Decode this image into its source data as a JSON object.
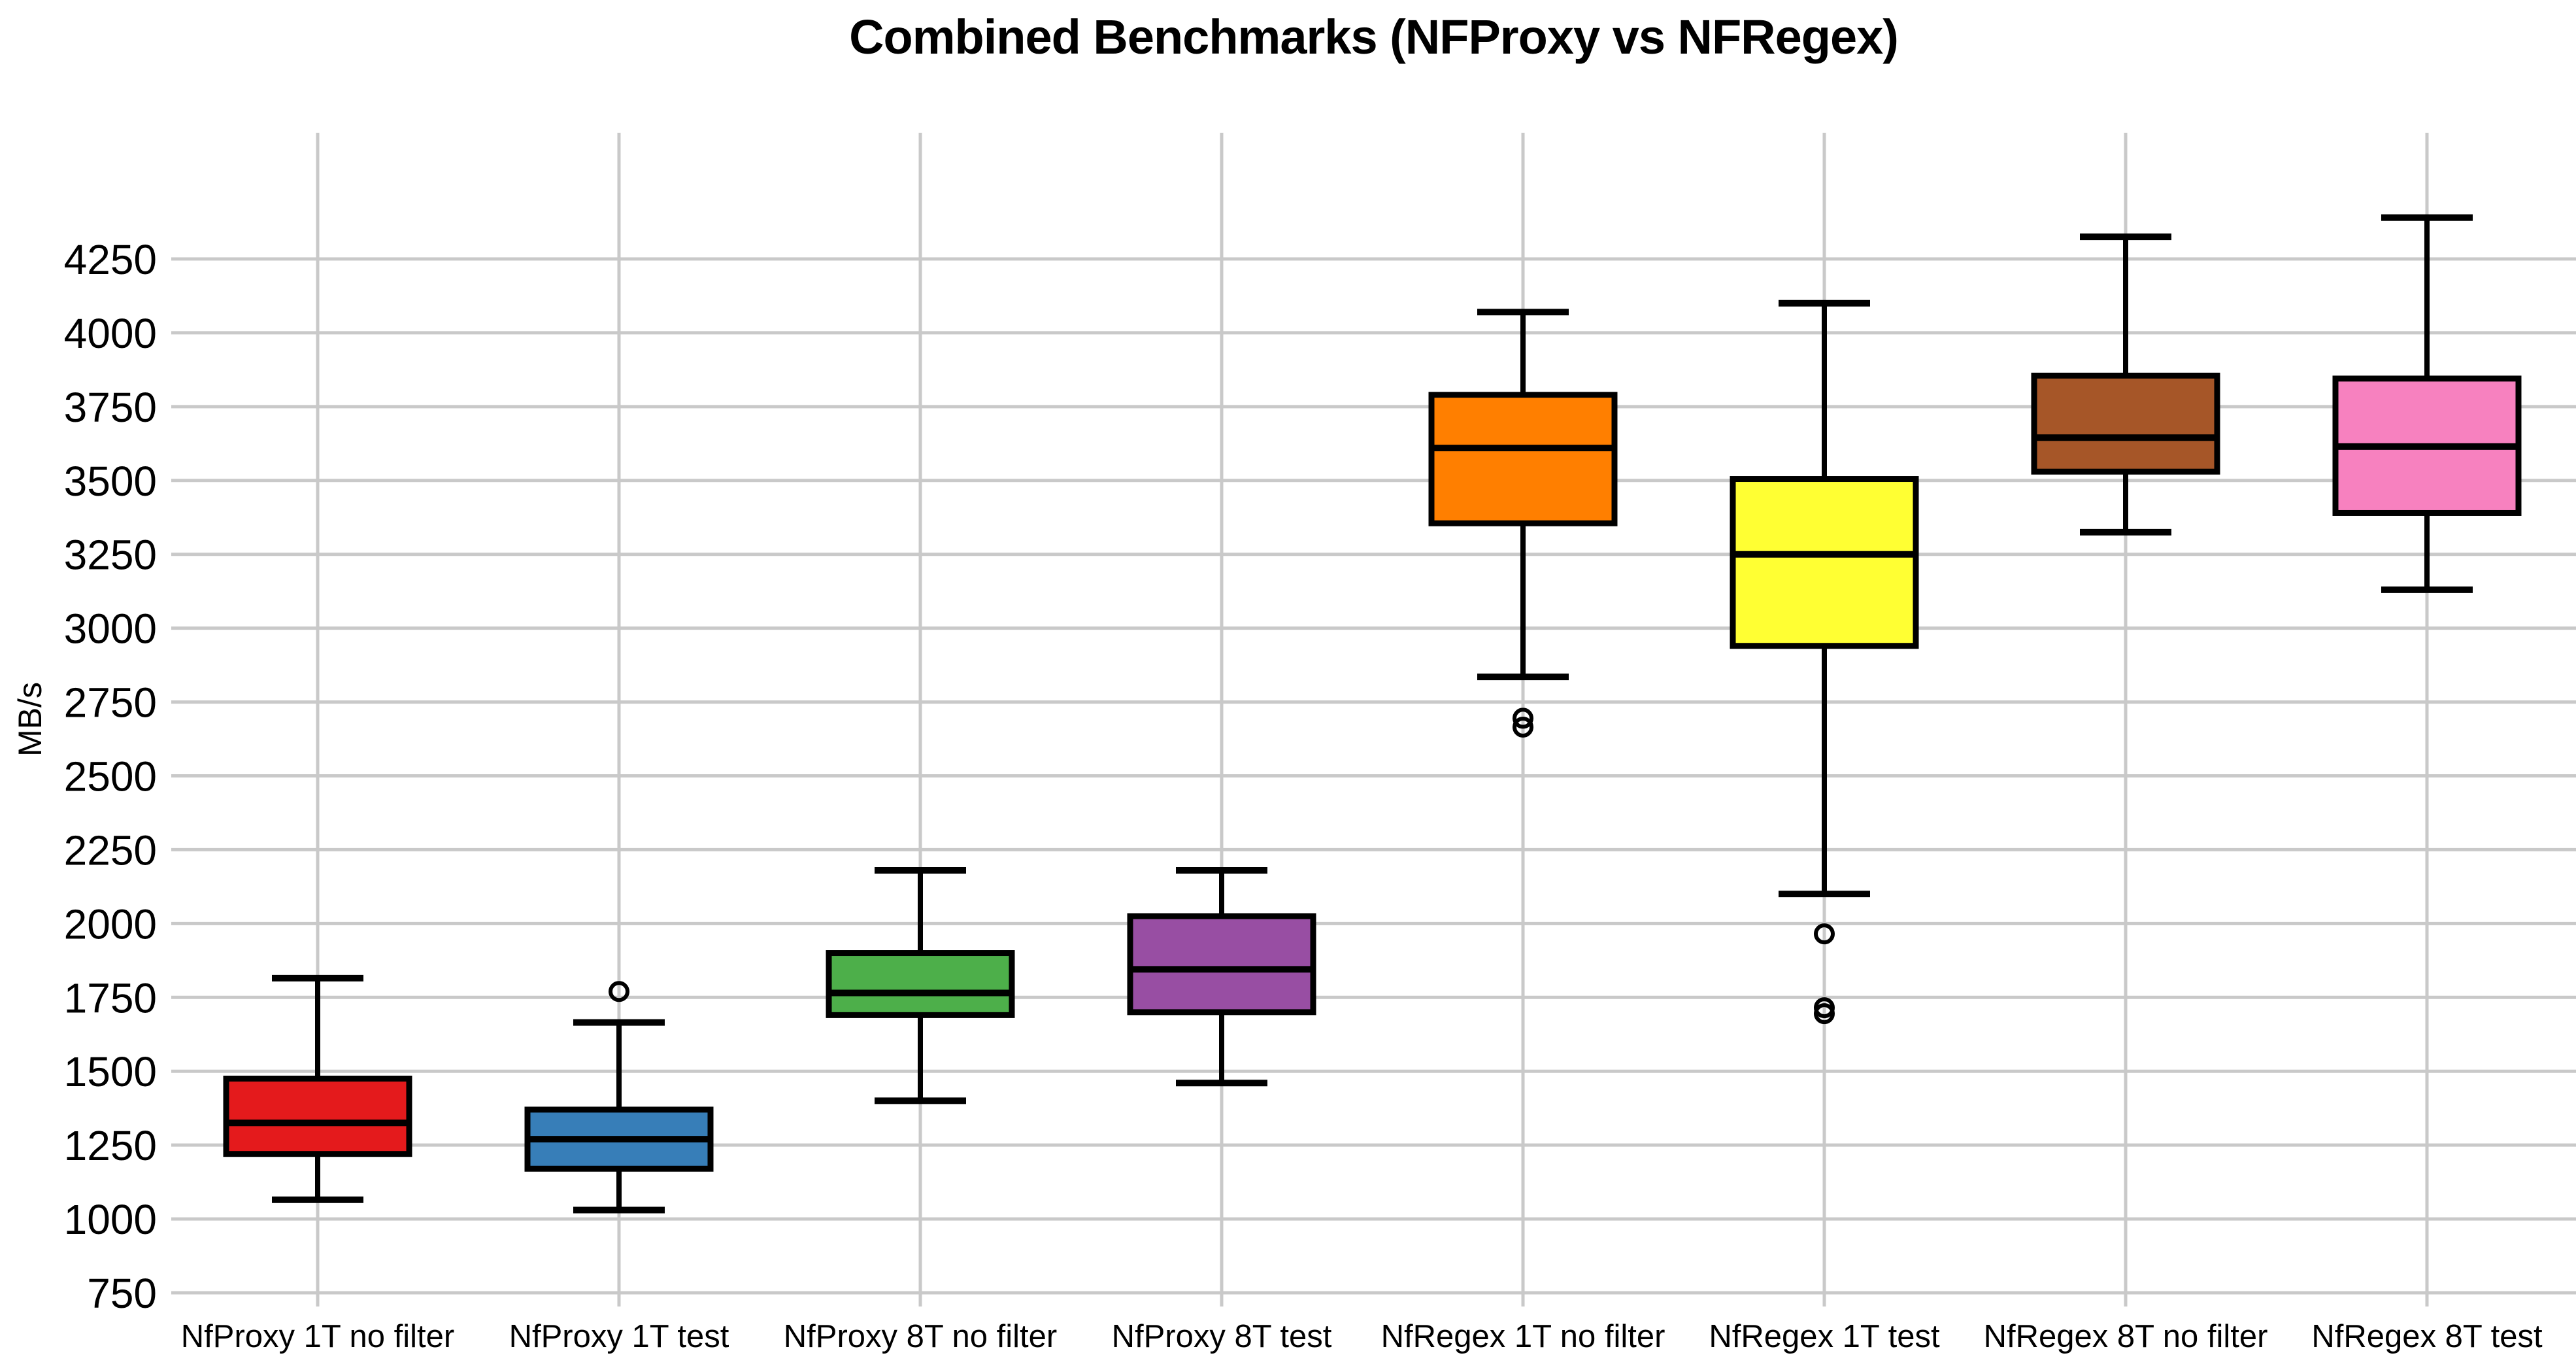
{
  "title": "Combined Benchmarks (NFProxy vs NFRegex)",
  "ylabel": "MB/s",
  "chart_data": {
    "type": "box",
    "title": "Combined Benchmarks (NFProxy vs NFRegex)",
    "xlabel": "",
    "ylabel": "MB/s",
    "ylim": [
      700,
      4680
    ],
    "yticks": [
      750,
      1000,
      1250,
      1500,
      1750,
      2000,
      2250,
      2500,
      2750,
      3000,
      3250,
      3500,
      3750,
      4000,
      4250
    ],
    "grid": true,
    "grid_color": "#c9c9c9",
    "box_edge_color": "#000000",
    "legend": "none",
    "categories": [
      "NfProxy 1T no filter",
      "NfProxy 1T test",
      "NfProxy 8T no filter",
      "NfProxy 8T test",
      "NfRegex 1T no filter",
      "NfRegex 1T test",
      "NfRegex 8T no filter",
      "NfRegex 8T test"
    ],
    "series": [
      {
        "name": "NfProxy 1T no filter",
        "color": "#e41a1c",
        "whisker_low": 1065,
        "q1": 1220,
        "median": 1325,
        "q3": 1475,
        "whisker_high": 1815,
        "outliers": []
      },
      {
        "name": "NfProxy 1T test",
        "color": "#377eb8",
        "whisker_low": 1030,
        "q1": 1170,
        "median": 1270,
        "q3": 1370,
        "whisker_high": 1665,
        "outliers": [
          1770
        ]
      },
      {
        "name": "NfProxy 8T no filter",
        "color": "#4daf4a",
        "whisker_low": 1400,
        "q1": 1690,
        "median": 1765,
        "q3": 1900,
        "whisker_high": 2180,
        "outliers": []
      },
      {
        "name": "NfProxy 8T test",
        "color": "#984ea3",
        "whisker_low": 1460,
        "q1": 1700,
        "median": 1845,
        "q3": 2025,
        "whisker_high": 2180,
        "outliers": []
      },
      {
        "name": "NfRegex 1T no filter",
        "color": "#ff7f00",
        "whisker_low": 2835,
        "q1": 3355,
        "median": 3610,
        "q3": 3790,
        "whisker_high": 4070,
        "outliers": [
          2695,
          2665
        ]
      },
      {
        "name": "NfRegex 1T test",
        "color": "#ffff33",
        "whisker_low": 2100,
        "q1": 2940,
        "median": 3250,
        "q3": 3505,
        "whisker_high": 4100,
        "outliers": [
          1965,
          1715,
          1695
        ]
      },
      {
        "name": "NfRegex 8T no filter",
        "color": "#a65628",
        "whisker_low": 3325,
        "q1": 3530,
        "median": 3645,
        "q3": 3855,
        "whisker_high": 4325,
        "outliers": []
      },
      {
        "name": "NfRegex 8T test",
        "color": "#f781bf",
        "whisker_low": 3130,
        "q1": 3390,
        "median": 3615,
        "q3": 3845,
        "whisker_high": 4390,
        "outliers": []
      }
    ]
  }
}
